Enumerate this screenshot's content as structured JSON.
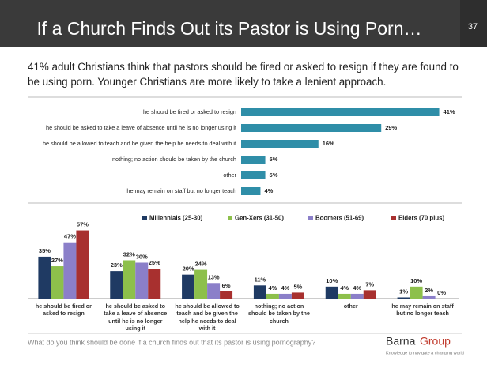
{
  "header": {
    "title": "If a Church Finds Out its Pastor is Using Porn…",
    "page": "37"
  },
  "subtitle": "41% adult Christians think that pastors should be fired or asked to resign if they are found to be using porn. Younger Christians are more likely to take a lenient approach.",
  "chart_data": [
    {
      "type": "bar",
      "orientation": "horizontal",
      "color": "#2f8ea8",
      "categories": [
        "he should be fired or asked to resign",
        "he should be asked to take a leave of absence until he is no longer using it",
        "he should be allowed to teach and be given the help he needs to deal with it",
        "nothing; no action should be taken by the church",
        "other",
        "he may remain on staff but no longer teach"
      ],
      "values": [
        41,
        29,
        16,
        5,
        5,
        4
      ],
      "value_labels": [
        "41%",
        "29%",
        "16%",
        "5%",
        "5%",
        "4%"
      ],
      "xlim": [
        0,
        45
      ]
    },
    {
      "type": "bar",
      "orientation": "vertical",
      "legend": "top",
      "categories": [
        "he should be fired or asked to resign",
        "he should be asked to take a leave of absence until he is no longer using it",
        "he should be allowed to teach and be given the help he needs to deal with it",
        "nothing; no action should be taken by the church",
        "other",
        "he may remain on staff but no longer teach"
      ],
      "series": [
        {
          "name": "Millennials (25-30)",
          "color": "#1f3a63",
          "values": [
            35,
            23,
            20,
            11,
            10,
            1
          ],
          "value_labels": [
            "35%",
            "23%",
            "20%",
            "11%",
            "10%",
            "1%"
          ]
        },
        {
          "name": "Gen-Xers (31-50)",
          "color": "#8dc04b",
          "values": [
            27,
            32,
            24,
            4,
            4,
            10
          ],
          "value_labels": [
            "27%",
            "32%",
            "24%",
            "4%",
            "4%",
            "10%"
          ]
        },
        {
          "name": "Boomers (51-69)",
          "color": "#8b7fc9",
          "values": [
            47,
            30,
            13,
            4,
            4,
            2
          ],
          "value_labels": [
            "47%",
            "30%",
            "13%",
            "4%",
            "4%",
            "2%"
          ]
        },
        {
          "name": "Elders (70 plus)",
          "color": "#a8302f",
          "values": [
            57,
            25,
            6,
            5,
            7,
            0
          ],
          "value_labels": [
            "57%",
            "25%",
            "6%",
            "5%",
            "7%",
            "0%"
          ]
        }
      ],
      "ylim": [
        0,
        60
      ]
    }
  ],
  "footer": {
    "question": "What do you think should be done if a church finds out that its pastor is using pornography?",
    "brand": [
      "Barna",
      "Group"
    ],
    "tagline": "Knowledge to navigate a changing world"
  }
}
